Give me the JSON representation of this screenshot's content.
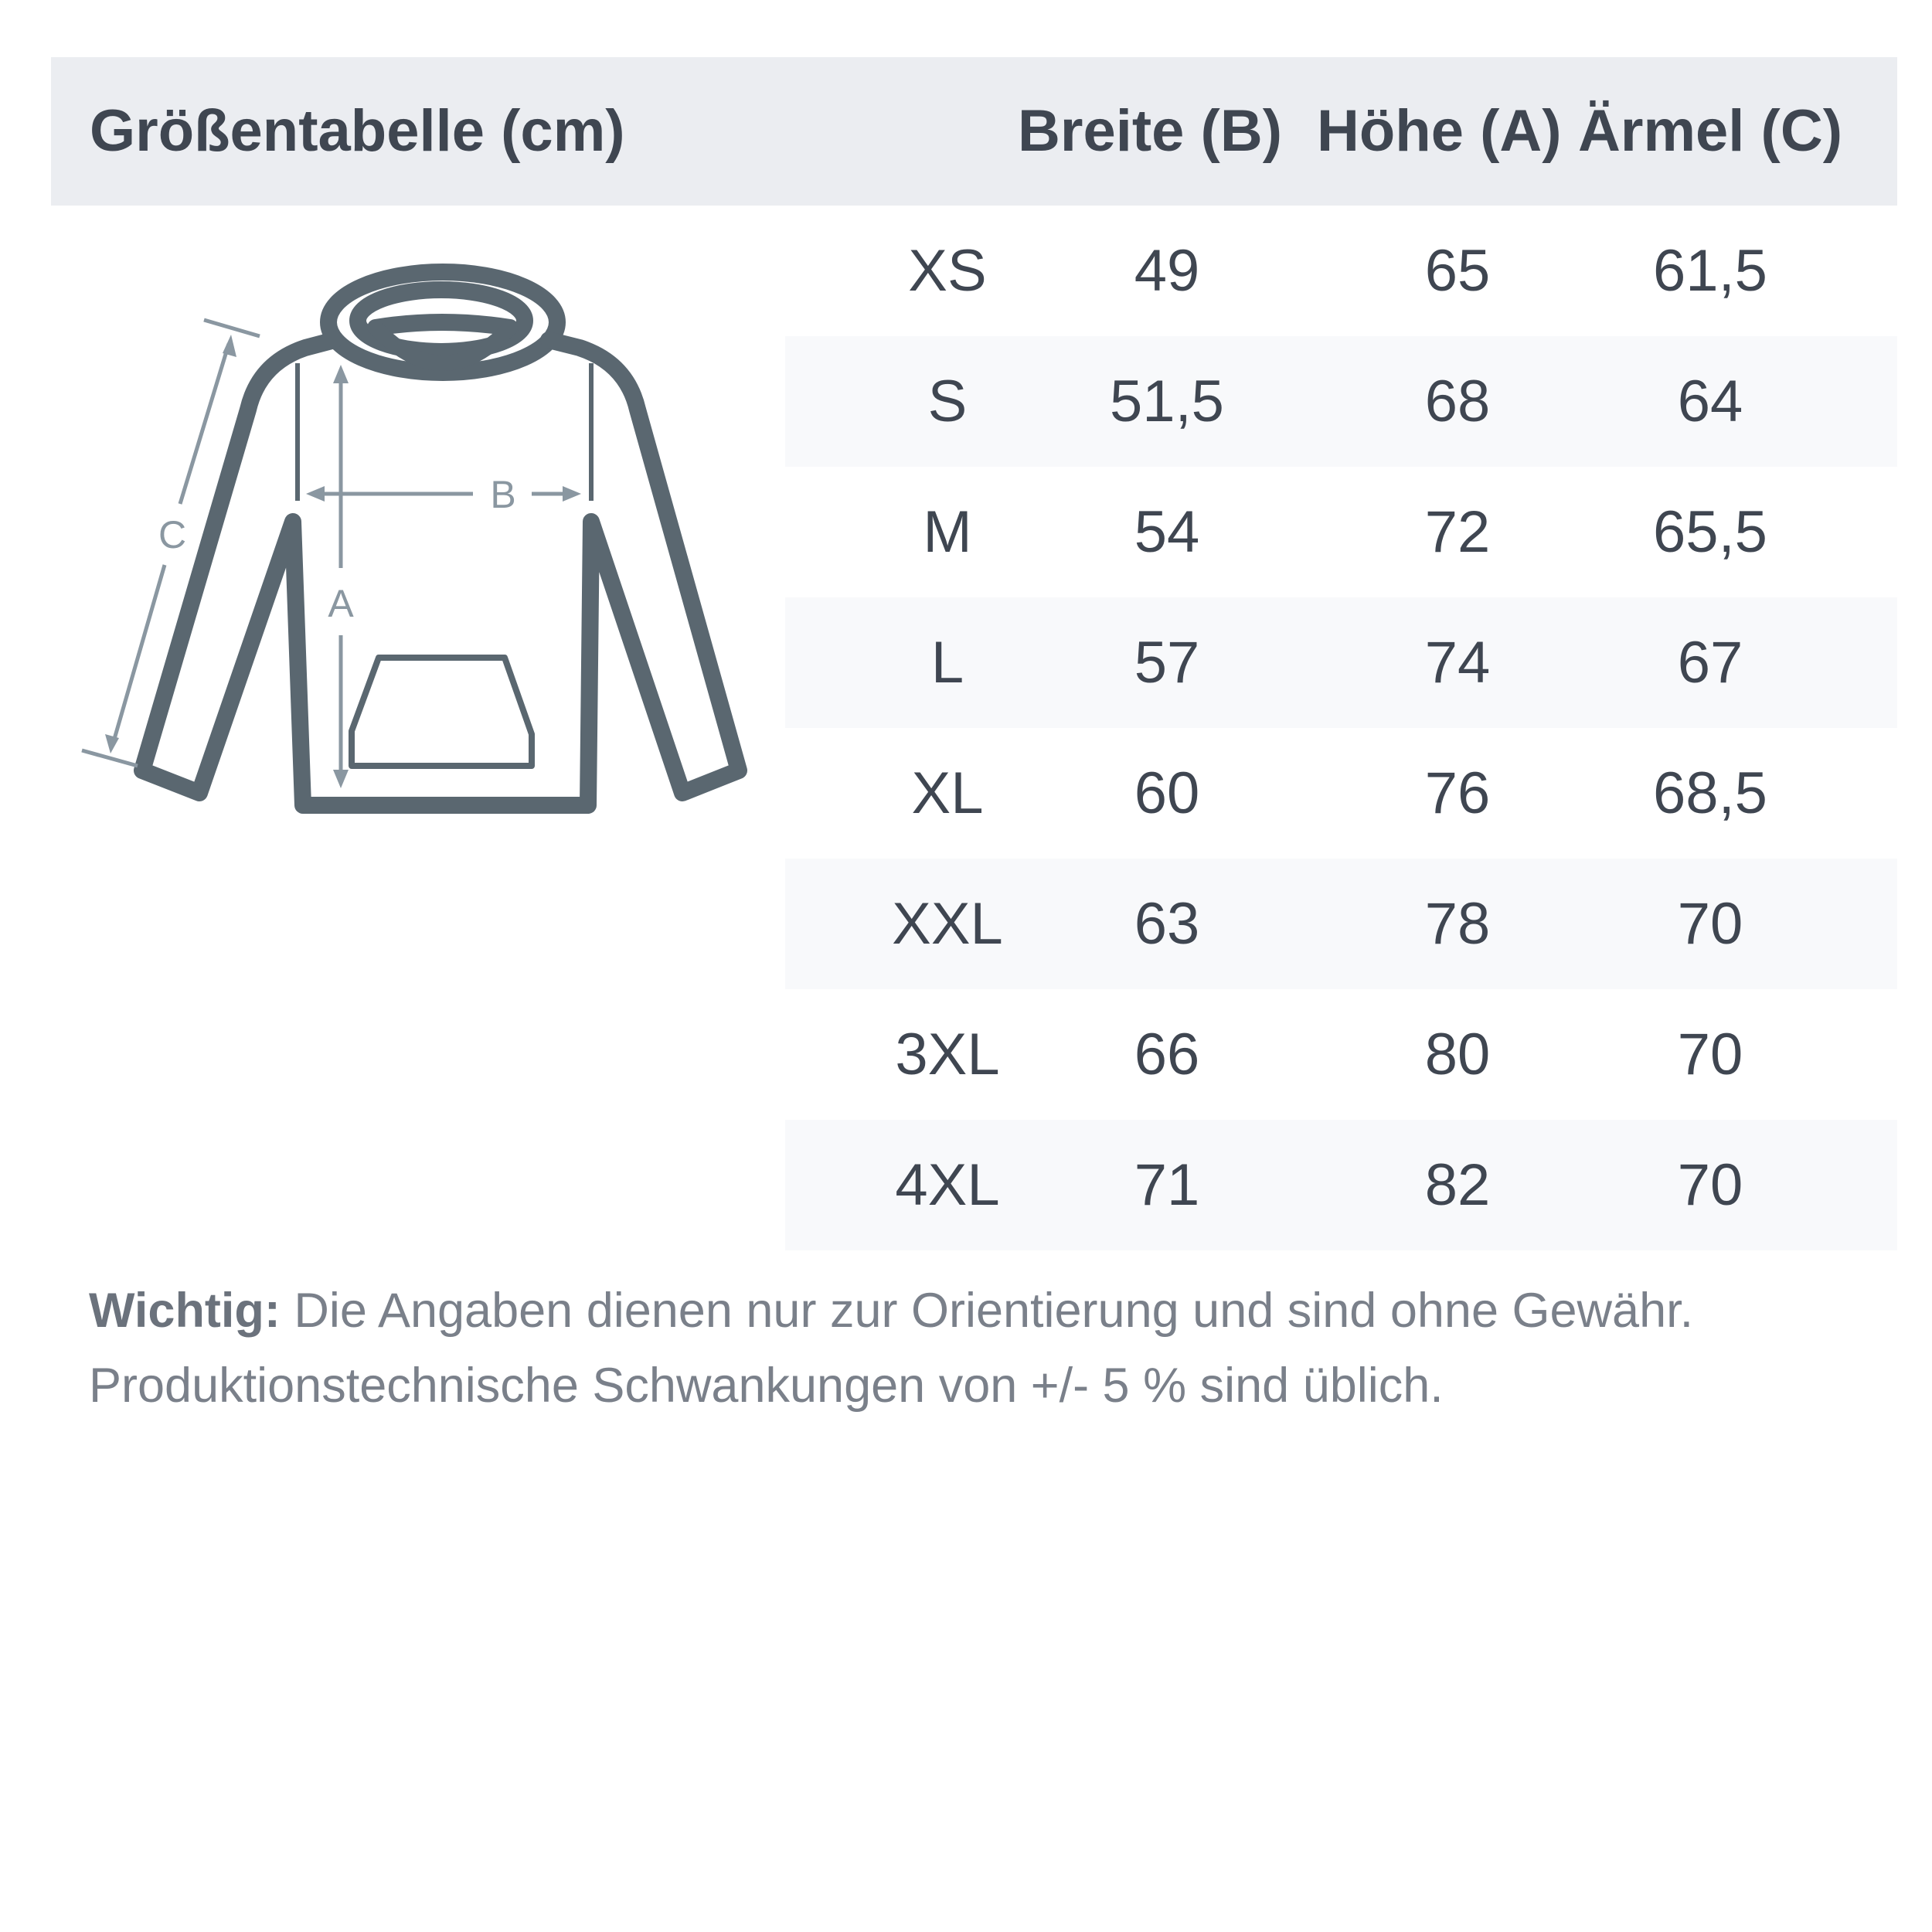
{
  "header": {
    "title": "Größentabelle (cm)",
    "columns": [
      "Breite (B)",
      "Höhe (A)",
      "Ärmel (C)"
    ]
  },
  "rows": [
    {
      "size": "XS",
      "breite": "49",
      "hoehe": "65",
      "aermel": "61,5"
    },
    {
      "size": "S",
      "breite": "51,5",
      "hoehe": "68",
      "aermel": "64"
    },
    {
      "size": "M",
      "breite": "54",
      "hoehe": "72",
      "aermel": "65,5"
    },
    {
      "size": "L",
      "breite": "57",
      "hoehe": "74",
      "aermel": "67"
    },
    {
      "size": "XL",
      "breite": "60",
      "hoehe": "76",
      "aermel": "68,5"
    },
    {
      "size": "XXL",
      "breite": "63",
      "hoehe": "78",
      "aermel": "70"
    },
    {
      "size": "3XL",
      "breite": "66",
      "hoehe": "80",
      "aermel": "70"
    },
    {
      "size": "4XL",
      "breite": "71",
      "hoehe": "82",
      "aermel": "70"
    }
  ],
  "diagram": {
    "label_a": "A",
    "label_b": "B",
    "label_c": "C"
  },
  "note": {
    "bold": "Wichtig:",
    "line1": " Die Angaben dienen nur zur Orientierung und sind ohne Gewähr.",
    "line2": "Produktionstechnische Schwankungen von +/- 5 % sind üblich."
  },
  "colors": {
    "header_bg": "#ebedf1",
    "stripe": "#f8f9fb",
    "text": "#3f4651",
    "hoodie": "#5a6770",
    "arrows": "#8a97a1"
  }
}
